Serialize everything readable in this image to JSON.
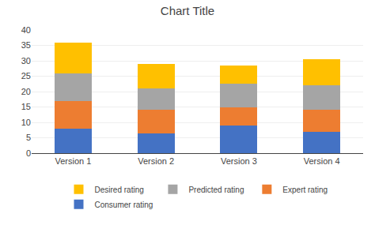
{
  "chart_data": {
    "type": "bar",
    "stacked": true,
    "title": "Chart Title",
    "categories": [
      "Version 1",
      "Version 2",
      "Version 3",
      "Version 4"
    ],
    "series": [
      {
        "name": "Consumer rating",
        "color": "#4472C4",
        "values": [
          8,
          6.5,
          9,
          7
        ]
      },
      {
        "name": "Expert rating",
        "color": "#ED7D31",
        "values": [
          9,
          7.5,
          6,
          7
        ]
      },
      {
        "name": "Predicted rating",
        "color": "#A5A5A5",
        "values": [
          9,
          7,
          7.5,
          8
        ]
      },
      {
        "name": "Desired rating",
        "color": "#FFC000",
        "values": [
          10,
          8,
          6,
          8.5
        ]
      }
    ],
    "ylim": [
      0,
      40
    ],
    "yticks": [
      0,
      5,
      10,
      15,
      20,
      25,
      30,
      35,
      40
    ],
    "grid": true,
    "legend": "bottom"
  }
}
